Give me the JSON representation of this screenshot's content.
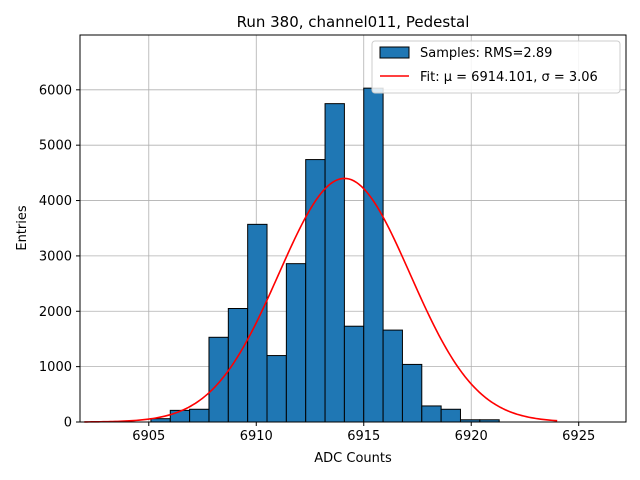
{
  "chart_data": {
    "type": "bar",
    "title": "Run 380, channel011, Pedestal",
    "xlabel": "ADC Counts",
    "ylabel": "Entries",
    "xlim": [
      6901.8,
      6927.2
    ],
    "ylim": [
      0,
      6990
    ],
    "xticks": [
      6905,
      6910,
      6915,
      6920,
      6925
    ],
    "yticks": [
      0,
      1000,
      2000,
      3000,
      4000,
      5000,
      6000
    ],
    "grid": true,
    "bin_width": 0.9,
    "bins": [
      {
        "left": 6905.1,
        "count": 60
      },
      {
        "left": 6906.0,
        "count": 210
      },
      {
        "left": 6906.9,
        "count": 230
      },
      {
        "left": 6907.8,
        "count": 1530
      },
      {
        "left": 6908.7,
        "count": 2050
      },
      {
        "left": 6909.6,
        "count": 3570
      },
      {
        "left": 6910.5,
        "count": 1200
      },
      {
        "left": 6911.4,
        "count": 2860
      },
      {
        "left": 6912.3,
        "count": 4740
      },
      {
        "left": 6913.2,
        "count": 5750
      },
      {
        "left": 6914.1,
        "count": 1730
      },
      {
        "left": 6915.0,
        "count": 6030
      },
      {
        "left": 6915.9,
        "count": 1660
      },
      {
        "left": 6916.8,
        "count": 1040
      },
      {
        "left": 6917.7,
        "count": 290
      },
      {
        "left": 6918.6,
        "count": 230
      },
      {
        "left": 6919.5,
        "count": 40
      },
      {
        "left": 6920.4,
        "count": 40
      }
    ],
    "fit": {
      "mu": 6914.101,
      "sigma": 3.06,
      "amplitude": 4400,
      "x_range": [
        6902.0,
        6924.0
      ]
    },
    "legend": {
      "position": "upper right",
      "entries": [
        {
          "label": "Samples: RMS=2.89",
          "kind": "patch",
          "color": "#1f77b4"
        },
        {
          "label": "Fit: μ = 6914.101, σ = 3.06",
          "kind": "line",
          "color": "#ff0000"
        }
      ]
    },
    "colors": {
      "bar_fill": "#1f77b4",
      "bar_edge": "#000000",
      "fit_line": "#ff0000",
      "grid": "#b0b0b0"
    }
  }
}
